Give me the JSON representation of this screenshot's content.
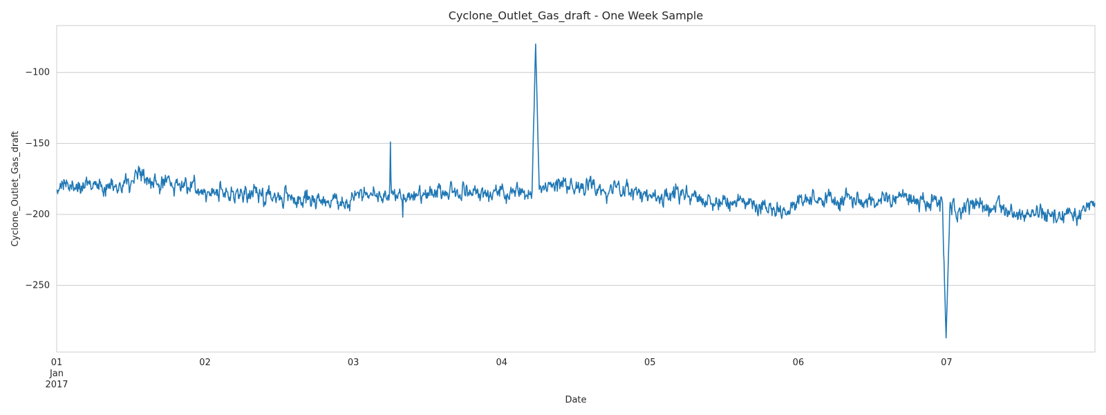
{
  "chart_data": {
    "type": "line",
    "title": "Cyclone_Outlet_Gas_draft - One Week Sample",
    "xlabel": "Date",
    "ylabel": "Cyclone_Outlet_Gas_draft",
    "x_tick_labels": [
      {
        "day": 1,
        "lines": [
          "01",
          "Jan",
          "2017"
        ]
      },
      {
        "day": 2,
        "lines": [
          "02"
        ]
      },
      {
        "day": 3,
        "lines": [
          "03"
        ]
      },
      {
        "day": 4,
        "lines": [
          "04"
        ]
      },
      {
        "day": 5,
        "lines": [
          "05"
        ]
      },
      {
        "day": 6,
        "lines": [
          "06"
        ]
      },
      {
        "day": 7,
        "lines": [
          "07"
        ]
      }
    ],
    "xlim": [
      "2017-01-01 00:00",
      "2017-01-08 00:00"
    ],
    "ylim": [
      -297,
      -67
    ],
    "y_ticks": [
      -100,
      -150,
      -200,
      -250
    ],
    "y_tick_labels": [
      "−100",
      "−150",
      "−200",
      "−250"
    ],
    "grid": "horizontal",
    "legend": "none",
    "colors": {
      "line": "#1f77b4",
      "grid": "#cccccc",
      "frame": "#cccccc"
    },
    "series": [
      {
        "values_sampled_every_2h_from_2017-01-01T00:00": [
          -183,
          -180,
          -178,
          -180,
          -179,
          -181,
          -177,
          -176,
          -178,
          -177,
          -179,
          -180,
          -184,
          -184,
          -185,
          -186,
          -186,
          -186,
          -188,
          -189,
          -190,
          -189,
          -191,
          -192,
          -187,
          -186,
          -185,
          -187,
          -186,
          -188,
          -186,
          -185,
          -184,
          -184,
          -185,
          -186,
          -185,
          -185,
          -185,
          -183,
          -180,
          -180,
          -181,
          -182,
          -181,
          -182,
          -183,
          -185,
          -186,
          -186,
          -186,
          -187,
          -188,
          -190,
          -190,
          -190,
          -192,
          -193,
          -196,
          -197,
          -190,
          -189,
          -190,
          -190,
          -189,
          -190,
          -191,
          -190,
          -188,
          -190,
          -191,
          -192,
          -194,
          -195,
          -194,
          -195,
          -196,
          -197,
          -199,
          -200,
          -200,
          -202,
          -202,
          -201,
          -193,
          -192,
          -192,
          -191,
          -191,
          -190,
          -190,
          -194,
          -195,
          -196,
          -199,
          -203
        ],
        "features": [
          {
            "time": "2017-01-03 06:00",
            "value": -149
          },
          {
            "time": "2017-01-03 08:00",
            "value": -202
          },
          {
            "time": "2017-01-04 05:30",
            "value": -80
          },
          {
            "time": "2017-01-06 23:55",
            "value": -287
          }
        ]
      }
    ]
  }
}
